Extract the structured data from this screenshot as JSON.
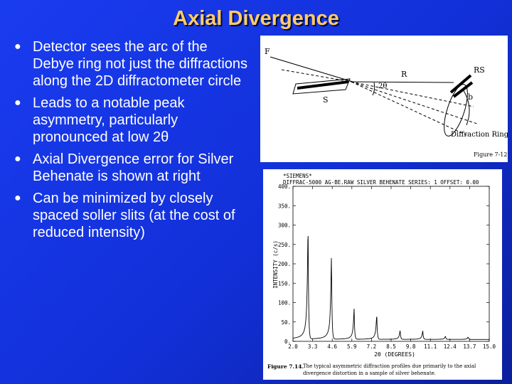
{
  "slide": {
    "title": "Axial Divergence",
    "bullets": [
      "Detector sees the arc of the Debye ring not just the diffractions along the 2D diffractometer circle",
      "Leads to a notable peak asymmetry, particularly pronounced at low 2θ",
      "Axial Divergence error for Silver Behenate is shown at right",
      "Can be minimized by closely spaced soller slits (at the cost of reduced intensity)"
    ]
  },
  "diagram": {
    "labels": {
      "F": "F",
      "R": "R",
      "RS": "RS",
      "S": "S",
      "two_theta": "2θ",
      "b": "b",
      "ring": "Diffraction Ring",
      "figure": "Figure 7-12"
    }
  },
  "chart_data": {
    "type": "line",
    "header": [
      "*SIEMENS*",
      "DIFFRAC-5000 AG-BE.RAW   SILVER BEHENATE   SERIES: 1 OFFSET: 0.00"
    ],
    "xlabel": "2θ (DEGREES)",
    "ylabel": "INTENSITY (c/s)",
    "xlim": [
      2.0,
      15.0
    ],
    "ylim": [
      0,
      400
    ],
    "x_ticks": [
      "2.0",
      "3.3",
      "4.6",
      "5.9",
      "7.2",
      "8.5",
      "9.8",
      "11.1",
      "12.4",
      "13.7",
      "15.0"
    ],
    "y_ticks": [
      "0",
      "50",
      "100",
      "150",
      "200",
      "250",
      "300",
      "350",
      "400"
    ],
    "baseline": 5,
    "peaks": [
      {
        "x": 3.0,
        "y": 293
      },
      {
        "x": 4.55,
        "y": 220
      },
      {
        "x": 6.05,
        "y": 84
      },
      {
        "x": 7.55,
        "y": 68
      },
      {
        "x": 9.1,
        "y": 28
      },
      {
        "x": 10.6,
        "y": 27
      },
      {
        "x": 12.1,
        "y": 13
      },
      {
        "x": 13.6,
        "y": 11
      }
    ],
    "caption_label": "Figure 7.14.",
    "caption": "The typical asymmetric diffraction profiles due primarily to the axial divergence distortion in a sample of silver behenate."
  },
  "colors": {
    "background": "#1230d8",
    "title": "#ffcc66",
    "text": "#ffffff"
  }
}
